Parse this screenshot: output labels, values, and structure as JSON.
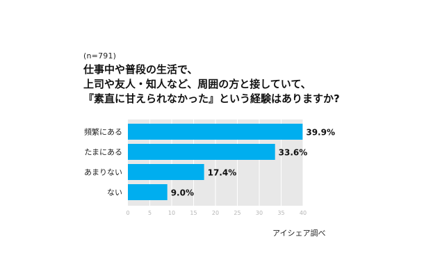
{
  "sample_size": "(n=791)",
  "question_lines": [
    "仕事中や普段の生活で、",
    "上司や友人・知人など、周囲の方と接していて、",
    "『素直に甘えられなかった』という経験はありますか?"
  ],
  "source": "アイシェア調べ",
  "colors": {
    "bar": "#00aeef",
    "plot_background": "#e8e8e8",
    "grid": "#ffffff",
    "tick_label": "#b4b4b4"
  },
  "chart_data": {
    "type": "bar",
    "orientation": "horizontal",
    "title": "",
    "xlabel": "",
    "ylabel": "",
    "categories": [
      "頻繁にある",
      "たまにある",
      "あまりない",
      "ない"
    ],
    "values": [
      39.9,
      33.6,
      17.4,
      9.0
    ],
    "value_labels": [
      "39.9%",
      "33.6%",
      "17.4%",
      "9.0%"
    ],
    "xlim": [
      0,
      40
    ],
    "x_ticks": [
      0,
      5,
      10,
      15,
      20,
      25,
      30,
      35,
      40
    ],
    "grid": true,
    "legend": "none"
  }
}
